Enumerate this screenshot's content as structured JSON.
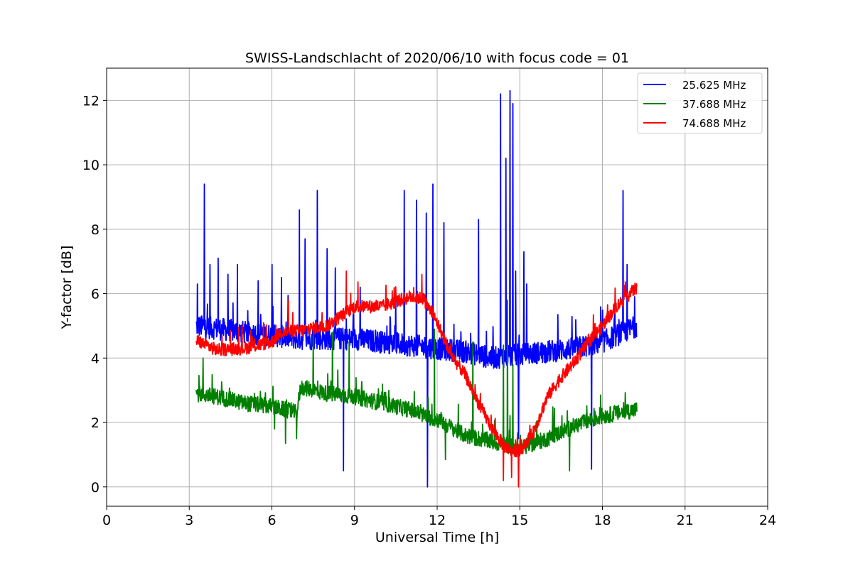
{
  "chart_data": {
    "type": "line",
    "title": "SWISS-Landschlacht of 2020/06/10 with focus code = 01",
    "xlabel": "Universal Time [h]",
    "ylabel": "Y-factor [dB]",
    "xlim": [
      0,
      24
    ],
    "ylim": [
      -0.6,
      13
    ],
    "xticks": [
      0,
      3,
      6,
      9,
      12,
      15,
      18,
      21,
      24
    ],
    "yticks": [
      0,
      2,
      4,
      6,
      8,
      10,
      12
    ],
    "grid": true,
    "legend_position": "top-right",
    "series": [
      {
        "name": "25.625 MHz",
        "color": "#0000ff",
        "baseline": [
          [
            3.25,
            5.0
          ],
          [
            5.0,
            4.8
          ],
          [
            6.0,
            4.7
          ],
          [
            7.0,
            4.6
          ],
          [
            8.0,
            4.6
          ],
          [
            9.0,
            4.6
          ],
          [
            10.0,
            4.5
          ],
          [
            11.0,
            4.4
          ],
          [
            12.0,
            4.3
          ],
          [
            13.0,
            4.2
          ],
          [
            14.0,
            4.0
          ],
          [
            15.0,
            4.1
          ],
          [
            16.0,
            4.2
          ],
          [
            17.0,
            4.3
          ],
          [
            18.0,
            4.5
          ],
          [
            19.25,
            5.0
          ]
        ],
        "noise": 0.35,
        "spikes": [
          [
            3.3,
            6.3
          ],
          [
            3.55,
            9.4
          ],
          [
            3.75,
            6.9
          ],
          [
            4.05,
            7.1
          ],
          [
            4.4,
            6.6
          ],
          [
            4.75,
            6.9
          ],
          [
            5.5,
            6.4
          ],
          [
            6.0,
            6.9
          ],
          [
            6.35,
            6.5
          ],
          [
            7.0,
            8.6
          ],
          [
            7.2,
            7.7
          ],
          [
            7.65,
            9.2
          ],
          [
            8.0,
            7.4
          ],
          [
            8.3,
            6.8
          ],
          [
            8.6,
            7.4
          ],
          [
            9.2,
            6.2
          ],
          [
            10.5,
            6.0
          ],
          [
            10.8,
            9.2
          ],
          [
            11.25,
            8.9
          ],
          [
            11.6,
            8.5
          ],
          [
            11.85,
            9.4
          ],
          [
            12.25,
            8.2
          ],
          [
            13.5,
            8.3
          ],
          [
            14.3,
            12.2
          ],
          [
            14.5,
            10.2
          ],
          [
            14.65,
            12.3
          ],
          [
            14.75,
            11.9
          ],
          [
            14.85,
            6.7
          ],
          [
            15.15,
            7.3
          ],
          [
            15.25,
            6.3
          ],
          [
            18.75,
            9.2
          ],
          [
            18.9,
            6.9
          ]
        ],
        "dips": [
          [
            8.6,
            0.5
          ],
          [
            11.65,
            0.0
          ],
          [
            17.6,
            0.55
          ],
          [
            14.95,
            1.5
          ]
        ]
      },
      {
        "name": "37.688 MHz",
        "color": "#008000",
        "baseline": [
          [
            3.25,
            2.9
          ],
          [
            4.0,
            2.8
          ],
          [
            5.0,
            2.6
          ],
          [
            6.0,
            2.5
          ],
          [
            6.9,
            2.3
          ],
          [
            7.05,
            3.1
          ],
          [
            8.0,
            2.9
          ],
          [
            9.0,
            2.8
          ],
          [
            10.0,
            2.6
          ],
          [
            11.0,
            2.4
          ],
          [
            11.9,
            2.1
          ],
          [
            12.0,
            2.1
          ],
          [
            13.0,
            1.6
          ],
          [
            14.0,
            1.4
          ],
          [
            14.5,
            1.3
          ],
          [
            15.0,
            1.2
          ],
          [
            16.0,
            1.5
          ],
          [
            17.0,
            1.9
          ],
          [
            18.0,
            2.2
          ],
          [
            19.25,
            2.4
          ]
        ],
        "noise": 0.25,
        "spikes": [
          [
            3.5,
            4.0
          ],
          [
            7.5,
            4.7
          ],
          [
            8.2,
            4.8
          ],
          [
            8.8,
            4.5
          ],
          [
            11.9,
            4.9
          ],
          [
            13.3,
            4.5
          ],
          [
            14.4,
            4.4
          ],
          [
            14.55,
            5.8
          ],
          [
            14.75,
            3.8
          ]
        ],
        "dips": [
          [
            6.1,
            1.8
          ],
          [
            6.5,
            1.35
          ],
          [
            6.9,
            1.5
          ],
          [
            12.3,
            0.85
          ],
          [
            16.8,
            0.5
          ]
        ]
      },
      {
        "name": "74.688 MHz",
        "color": "#ff0000",
        "baseline": [
          [
            3.25,
            4.55
          ],
          [
            4.0,
            4.25
          ],
          [
            5.0,
            4.3
          ],
          [
            6.0,
            4.5
          ],
          [
            6.3,
            4.8
          ],
          [
            7.0,
            4.85
          ],
          [
            8.0,
            5.0
          ],
          [
            9.0,
            5.6
          ],
          [
            10.0,
            5.6
          ],
          [
            11.0,
            5.9
          ],
          [
            11.5,
            5.85
          ],
          [
            12.0,
            5.1
          ],
          [
            12.5,
            4.1
          ],
          [
            13.0,
            3.5
          ],
          [
            13.5,
            2.6
          ],
          [
            14.0,
            1.8
          ],
          [
            14.5,
            1.2
          ],
          [
            15.0,
            1.1
          ],
          [
            15.5,
            1.7
          ],
          [
            16.0,
            2.8
          ],
          [
            16.5,
            3.4
          ],
          [
            17.0,
            3.9
          ],
          [
            17.5,
            4.5
          ],
          [
            18.0,
            5.0
          ],
          [
            18.5,
            5.6
          ],
          [
            19.25,
            6.2
          ]
        ],
        "noise": 0.2,
        "spikes": [
          [
            8.7,
            6.7
          ],
          [
            11.45,
            6.6
          ],
          [
            6.6,
            5.8
          ]
        ],
        "dips": [
          [
            14.4,
            0.2
          ],
          [
            14.95,
            0.0
          ],
          [
            14.7,
            0.3
          ]
        ]
      }
    ]
  }
}
